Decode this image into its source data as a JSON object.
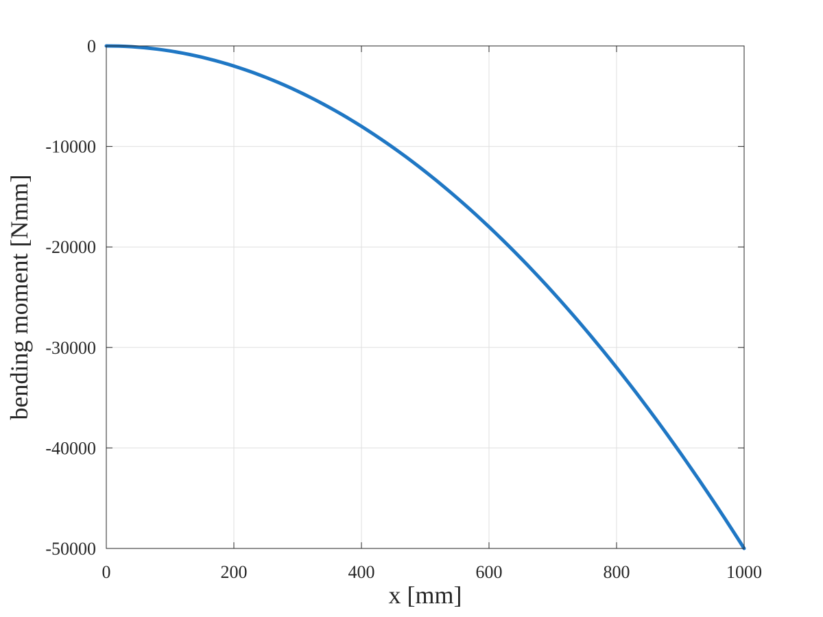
{
  "chart_data": {
    "type": "line",
    "xlabel": "x [mm]",
    "ylabel": "bending moment [Nmm]",
    "xlim": [
      0,
      1000
    ],
    "ylim": [
      -50000,
      0
    ],
    "x_ticks": [
      0,
      200,
      400,
      600,
      800,
      1000
    ],
    "y_ticks": [
      0,
      -10000,
      -20000,
      -30000,
      -40000,
      -50000
    ],
    "x_tick_labels": [
      "0",
      "200",
      "400",
      "600",
      "800",
      "1000"
    ],
    "y_tick_labels": [
      "0",
      "-10000",
      "-20000",
      "-30000",
      "-40000",
      "-50000"
    ],
    "grid": true,
    "colors": {
      "series": "#1f77c4",
      "grid": "#dfdfdf",
      "axes": "#262626"
    },
    "series": [
      {
        "x": [
          0,
          100,
          200,
          300,
          400,
          500,
          600,
          700,
          800,
          900,
          1000
        ],
        "values": [
          0,
          -500,
          -2000,
          -4500,
          -8000,
          -12500,
          -18000,
          -24500,
          -32000,
          -40500,
          -50000
        ]
      }
    ]
  }
}
